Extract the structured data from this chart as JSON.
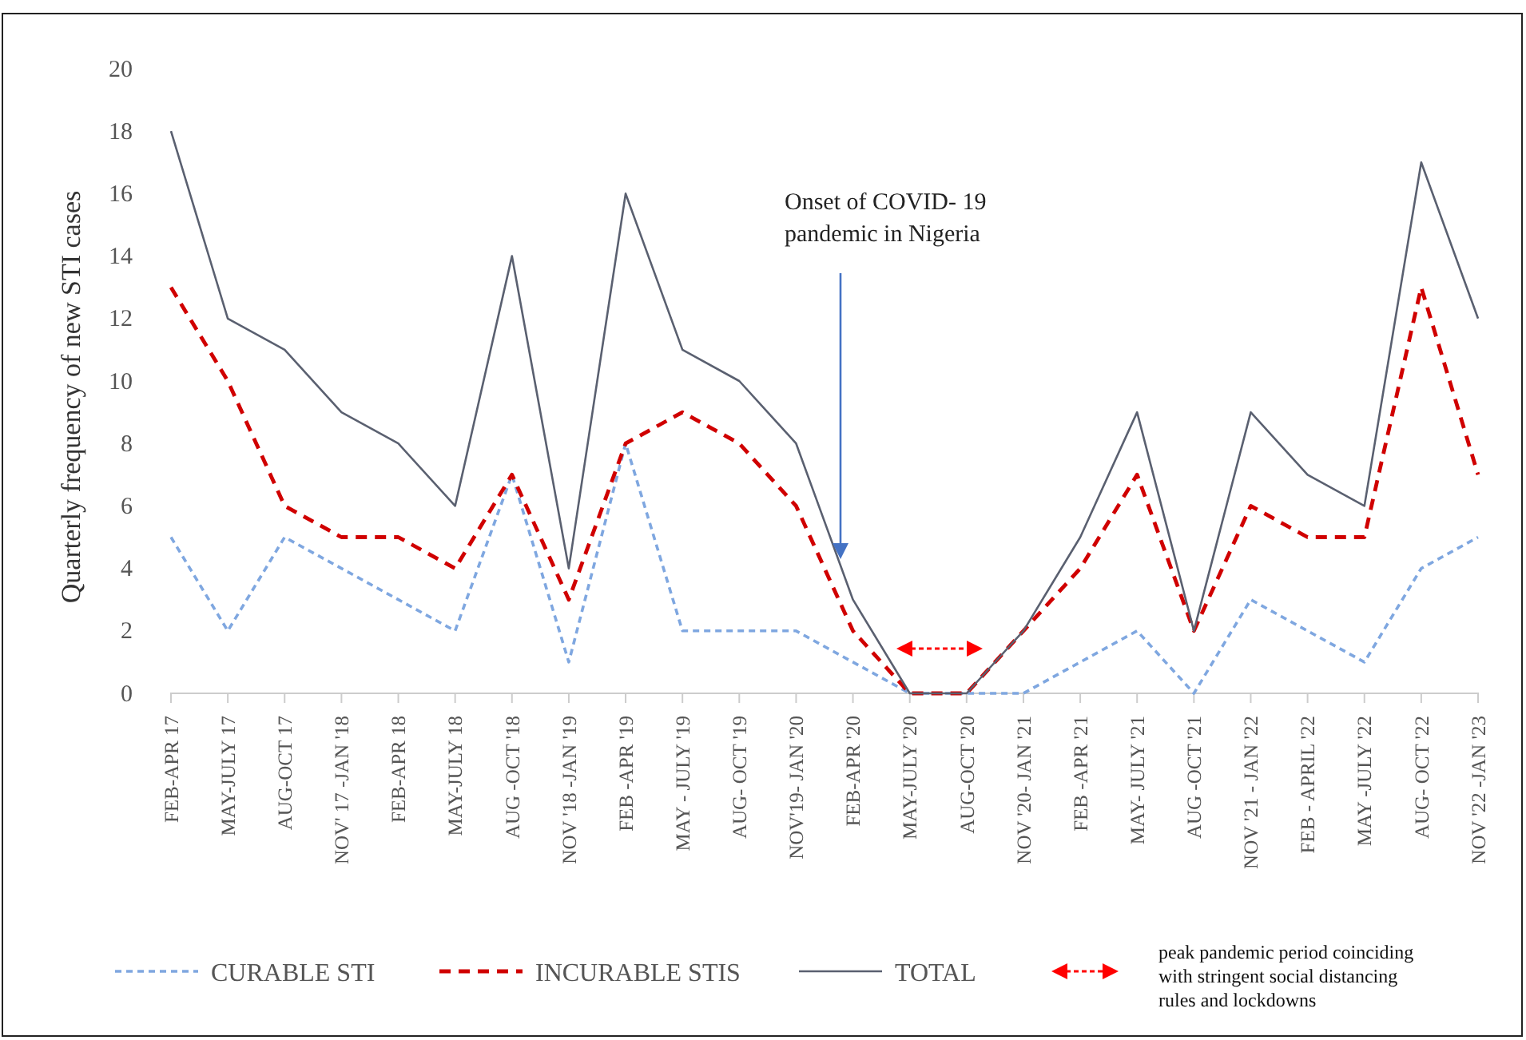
{
  "chart_data": {
    "type": "line",
    "ylabel": "Quarterly frequency of new STI cases",
    "categories": [
      "FEB-APR 17",
      "MAY-JULY 17",
      "AUG-OCT 17",
      "NOV' 17 -JAN '18",
      "FEB-APR 18",
      "MAY-JULY 18",
      "AUG -OCT '18",
      "NOV '18 -JAN '19",
      "FEB -APR '19",
      "MAY - JULY '19",
      "AUG- OCT '19",
      "NOV'19- JAN '20",
      "FEB-APR '20",
      "MAY-JULY '20",
      "AUG-OCT '20",
      "NOV '20- JAN '21",
      "FEB -APR '21",
      "MAY- JULY '21",
      "AUG -OCT '21",
      "NOV '21 - JAN '22",
      "FEB - APRIL '22",
      "MAY -JULY '22",
      "AUG- OCT '22",
      "NOV '22 -JAN '23"
    ],
    "series": [
      {
        "name": "CURABLE STI",
        "color": "#7fa7e0",
        "line_style": "dotted",
        "values": [
          5,
          2,
          5,
          4,
          3,
          2,
          7,
          1,
          8,
          2,
          2,
          2,
          1,
          0,
          0,
          0,
          1,
          2,
          0,
          3,
          2,
          1,
          4,
          5
        ]
      },
      {
        "name": "INCURABLE STIS",
        "color": "#d00000",
        "line_style": "dashed",
        "values": [
          13,
          10,
          6,
          5,
          5,
          4,
          7,
          3,
          8,
          9,
          8,
          6,
          2,
          0,
          0,
          2,
          4,
          7,
          2,
          6,
          5,
          5,
          13,
          7
        ]
      },
      {
        "name": "TOTAL",
        "color": "#5a6070",
        "line_style": "solid",
        "values": [
          18,
          12,
          11,
          9,
          8,
          6,
          14,
          4,
          16,
          11,
          10,
          8,
          3,
          0,
          0,
          2,
          5,
          9,
          2,
          9,
          7,
          6,
          17,
          12
        ]
      }
    ],
    "ylim": [
      0,
      20
    ],
    "yticks": [
      0,
      2,
      4,
      6,
      8,
      10,
      12,
      14,
      16,
      18,
      20
    ],
    "grid": false,
    "legend": "bottom",
    "marker": "none",
    "annotations": [
      "Onset of COVID- 19 pandemic in Nigeria",
      "peak pandemic period coinciding with stringent social distancing rules and lockdowns"
    ]
  }
}
